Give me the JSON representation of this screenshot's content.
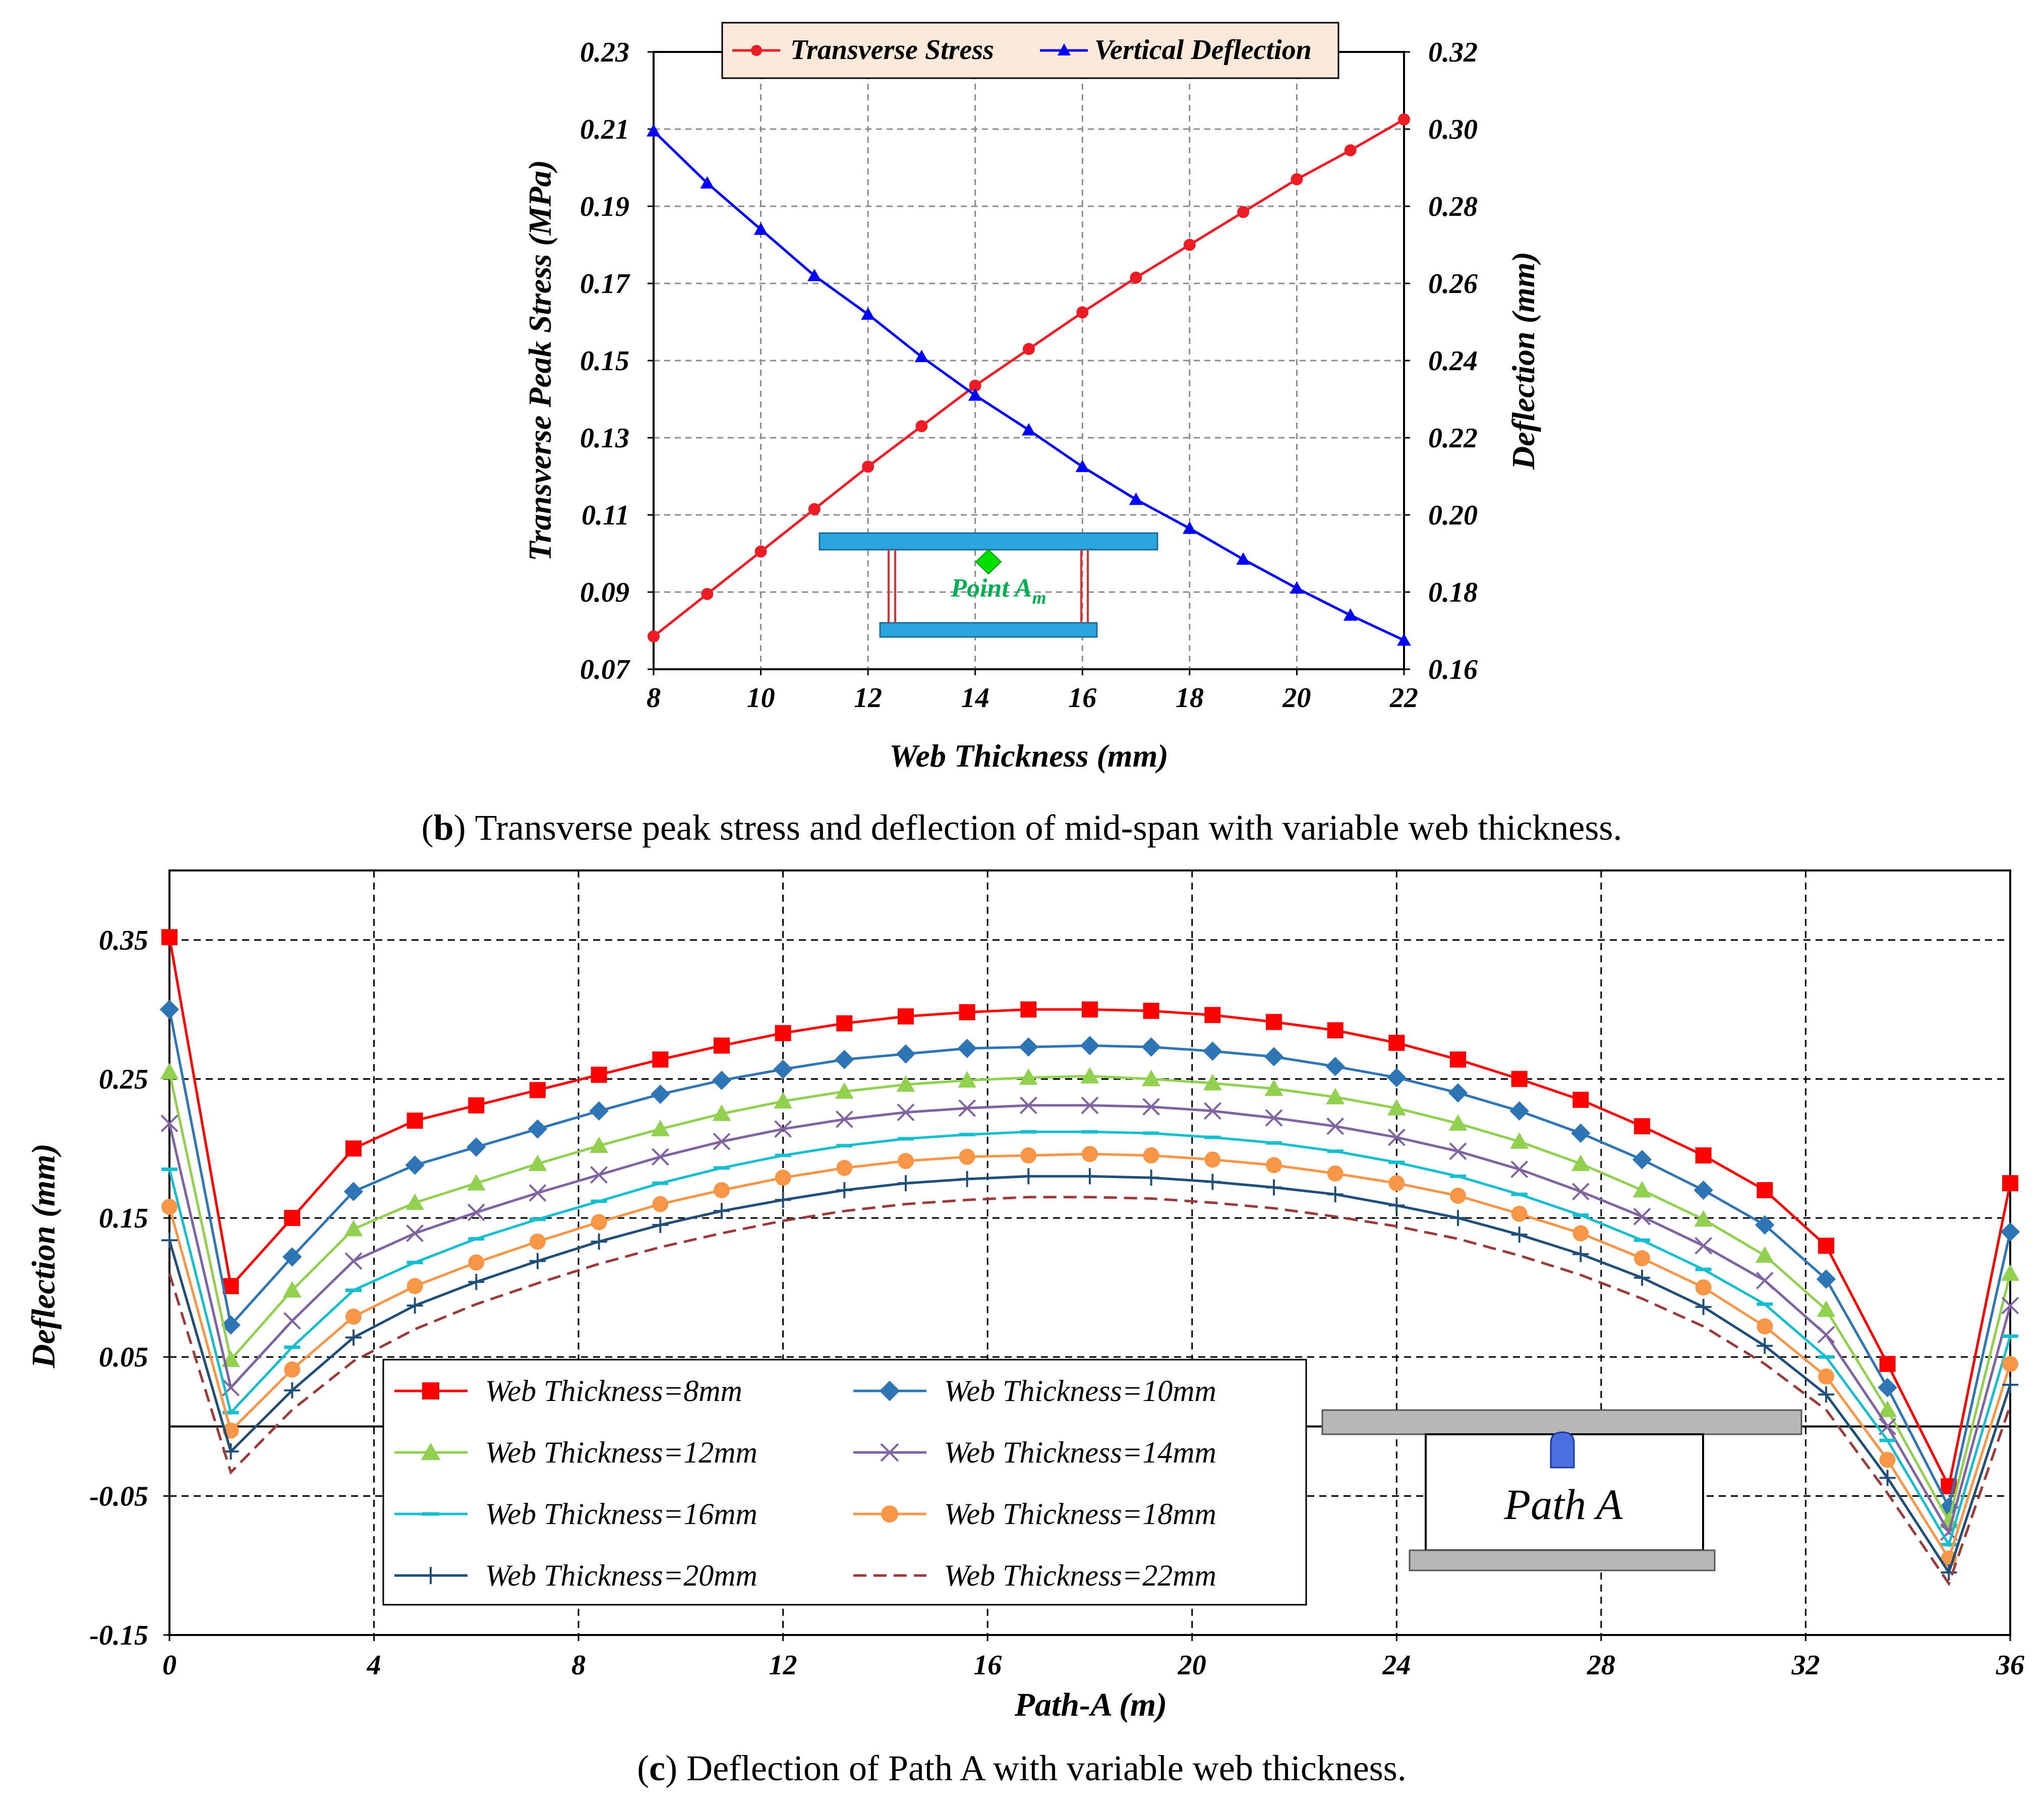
{
  "chart_data": [
    {
      "type": "line",
      "panel": "b",
      "caption": {
        "letter": "b",
        "open": "(",
        "close": ")",
        "text": "Transverse peak stress and deflection of mid-span with variable web thickness."
      },
      "xlabel": "Web Thickness (mm)",
      "ylabel_left": "Transverse Peak Stress (MPa)",
      "ylabel_right": "Deflection (mm)",
      "xlim": [
        8,
        22
      ],
      "ylim_left": [
        0.07,
        0.23
      ],
      "ylim_right": [
        0.16,
        0.32
      ],
      "x_ticks": [
        "8",
        "10",
        "12",
        "14",
        "16",
        "18",
        "20",
        "22"
      ],
      "y_ticks_left": [
        "0.07",
        "0.09",
        "0.11",
        "0.13",
        "0.15",
        "0.17",
        "0.19",
        "0.21",
        "0.23"
      ],
      "y_ticks_right": [
        "0.16",
        "0.18",
        "0.20",
        "0.22",
        "0.24",
        "0.26",
        "0.28",
        "0.30",
        "0.32"
      ],
      "grid": true,
      "legend_position": "top-center",
      "x": [
        8,
        9,
        10,
        11,
        12,
        13,
        14,
        15,
        16,
        17,
        18,
        19,
        20,
        21,
        22
      ],
      "series": [
        {
          "name": "Transverse Stress",
          "axis": "left",
          "color": "#ee1c24",
          "marker": "circle",
          "values": [
            0.0785,
            0.0895,
            0.1005,
            0.1115,
            0.1225,
            0.133,
            0.1435,
            0.153,
            0.1625,
            0.1715,
            0.18,
            0.1885,
            0.197,
            0.2045,
            0.2125
          ]
        },
        {
          "name": "Vertical Deflection",
          "axis": "right",
          "color": "#0000ff",
          "marker": "triangle",
          "values": [
            0.2995,
            0.286,
            0.274,
            0.262,
            0.252,
            0.241,
            0.231,
            0.222,
            0.2125,
            0.204,
            0.1965,
            0.1885,
            0.181,
            0.174,
            0.1675
          ]
        }
      ],
      "annotation": {
        "label": "Point A",
        "subscript": "m",
        "color": "#00b050",
        "beam_color": "#2aa5dd"
      }
    },
    {
      "type": "line",
      "panel": "c",
      "caption": {
        "letter": "c",
        "open": "(",
        "close": ")",
        "text": "Deflection of Path A with variable web thickness."
      },
      "xlabel": "Path-A (m)",
      "ylabel": "Deflection (mm)",
      "xlim": [
        0,
        36
      ],
      "ylim": [
        -0.15,
        0.4
      ],
      "x_ticks": [
        "0",
        "4",
        "8",
        "12",
        "16",
        "20",
        "24",
        "28",
        "32",
        "36"
      ],
      "y_ticks": [
        "-0.15",
        "-0.05",
        "0.05",
        "0.15",
        "0.25",
        "0.35"
      ],
      "grid": true,
      "legend_position": "bottom-left",
      "x": [
        0,
        1.2,
        2.4,
        3.6,
        4.8,
        6.0,
        7.2,
        8.4,
        9.6,
        10.8,
        12.0,
        13.2,
        14.4,
        15.6,
        16.8,
        18.0,
        19.2,
        20.4,
        21.6,
        22.8,
        24.0,
        25.2,
        26.4,
        27.6,
        28.8,
        30.0,
        31.2,
        32.4,
        33.6,
        34.8,
        36.0
      ],
      "series": [
        {
          "name": "Web Thickness=8mm",
          "color": "#ff0000",
          "marker": "square",
          "values": [
            0.352,
            0.101,
            0.15,
            0.2,
            0.22,
            0.231,
            0.242,
            0.253,
            0.264,
            0.274,
            0.283,
            0.29,
            0.295,
            0.298,
            0.3,
            0.3,
            0.299,
            0.296,
            0.291,
            0.285,
            0.276,
            0.264,
            0.25,
            0.235,
            0.216,
            0.195,
            0.17,
            0.13,
            0.045,
            -0.043,
            0.175
          ]
        },
        {
          "name": "Web Thickness=10mm",
          "color": "#2e75b6",
          "marker": "diamond",
          "values": [
            0.3,
            0.073,
            0.122,
            0.169,
            0.188,
            0.201,
            0.214,
            0.227,
            0.239,
            0.249,
            0.257,
            0.264,
            0.268,
            0.272,
            0.273,
            0.274,
            0.273,
            0.27,
            0.266,
            0.259,
            0.251,
            0.24,
            0.227,
            0.211,
            0.192,
            0.17,
            0.145,
            0.106,
            0.028,
            -0.058,
            0.14
          ]
        },
        {
          "name": "Web Thickness=12mm",
          "color": "#92d050",
          "marker": "triangle",
          "values": [
            0.255,
            0.048,
            0.098,
            0.142,
            0.161,
            0.175,
            0.189,
            0.202,
            0.214,
            0.225,
            0.234,
            0.241,
            0.246,
            0.249,
            0.251,
            0.252,
            0.25,
            0.247,
            0.243,
            0.237,
            0.229,
            0.218,
            0.205,
            0.189,
            0.17,
            0.149,
            0.123,
            0.084,
            0.012,
            -0.068,
            0.11
          ]
        },
        {
          "name": "Web Thickness=14mm",
          "color": "#8064a2",
          "marker": "x",
          "values": [
            0.218,
            0.028,
            0.076,
            0.119,
            0.139,
            0.154,
            0.168,
            0.181,
            0.194,
            0.205,
            0.214,
            0.221,
            0.226,
            0.229,
            0.231,
            0.231,
            0.23,
            0.227,
            0.222,
            0.216,
            0.208,
            0.198,
            0.185,
            0.169,
            0.151,
            0.13,
            0.105,
            0.066,
            0.0,
            -0.076,
            0.087
          ]
        },
        {
          "name": "Web Thickness=16mm",
          "color": "#17becf",
          "marker": "dash",
          "values": [
            0.185,
            0.01,
            0.057,
            0.098,
            0.118,
            0.135,
            0.149,
            0.162,
            0.175,
            0.186,
            0.195,
            0.202,
            0.207,
            0.21,
            0.212,
            0.212,
            0.211,
            0.208,
            0.204,
            0.198,
            0.19,
            0.18,
            0.167,
            0.152,
            0.134,
            0.113,
            0.088,
            0.05,
            -0.01,
            -0.085,
            0.065
          ]
        },
        {
          "name": "Web Thickness=18mm",
          "color": "#f79646",
          "marker": "circle",
          "values": [
            0.158,
            -0.003,
            0.041,
            0.079,
            0.101,
            0.118,
            0.133,
            0.147,
            0.16,
            0.17,
            0.179,
            0.186,
            0.191,
            0.194,
            0.195,
            0.196,
            0.195,
            0.192,
            0.188,
            0.182,
            0.175,
            0.166,
            0.153,
            0.139,
            0.121,
            0.1,
            0.072,
            0.036,
            -0.024,
            -0.095,
            0.045
          ]
        },
        {
          "name": "Web Thickness=20mm",
          "color": "#1f4e79",
          "marker": "plus",
          "values": [
            0.134,
            -0.018,
            0.026,
            0.064,
            0.087,
            0.104,
            0.119,
            0.133,
            0.145,
            0.155,
            0.163,
            0.17,
            0.175,
            0.178,
            0.18,
            0.18,
            0.179,
            0.176,
            0.172,
            0.167,
            0.159,
            0.15,
            0.138,
            0.124,
            0.107,
            0.086,
            0.058,
            0.023,
            -0.037,
            -0.105,
            0.03
          ]
        },
        {
          "name": "Web Thickness=22mm",
          "color": "#9c3a3a",
          "marker": "none",
          "dashed": true,
          "values": [
            0.11,
            -0.033,
            0.012,
            0.047,
            0.07,
            0.088,
            0.103,
            0.117,
            0.129,
            0.139,
            0.148,
            0.155,
            0.16,
            0.163,
            0.165,
            0.165,
            0.164,
            0.161,
            0.157,
            0.151,
            0.144,
            0.135,
            0.123,
            0.109,
            0.092,
            0.072,
            0.045,
            0.012,
            -0.048,
            -0.113,
            0.015
          ]
        }
      ],
      "annotation": {
        "label": "Path A",
        "beam_color": "#b7b7b7"
      }
    }
  ]
}
